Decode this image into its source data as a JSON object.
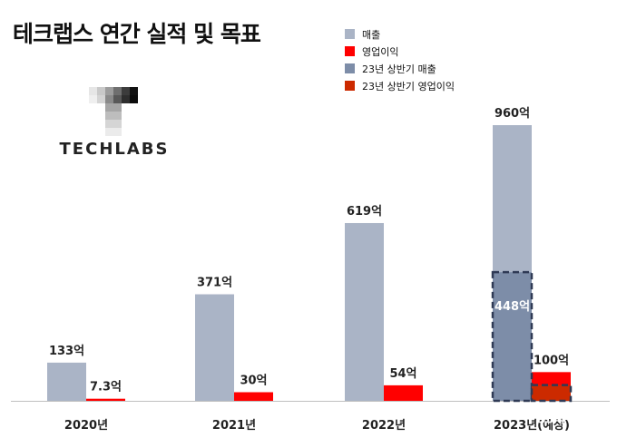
{
  "title": "테크랩스 연간 실적 및 목표",
  "logo": {
    "text": "TECHLABS"
  },
  "colors": {
    "revenue": "#aab4c6",
    "profit": "#ff0000",
    "h1_revenue": "#7d8da8",
    "h1_profit": "#cc2a00",
    "axis": "#bfbfbf",
    "label": "#222222"
  },
  "legend": [
    {
      "label": "매출",
      "color": "#aab4c6"
    },
    {
      "label": "영업이익",
      "color": "#ff0000"
    },
    {
      "label": "23년 상반기 매출",
      "color": "#7d8da8"
    },
    {
      "label": "23년 상반기 영업이익",
      "color": "#cc2a00"
    }
  ],
  "chart_data": {
    "type": "bar",
    "categories": [
      "2020년",
      "2021년",
      "2022년",
      "2023년(예상)"
    ],
    "series": [
      {
        "name": "매출",
        "values": [
          133,
          371,
          619,
          960
        ],
        "labels": [
          "133억",
          "371억",
          "619억",
          "960억"
        ]
      },
      {
        "name": "영업이익",
        "values": [
          7.3,
          30,
          54,
          100
        ],
        "labels": [
          "7.3억",
          "30억",
          "54억",
          "100억"
        ]
      }
    ],
    "overlay": [
      {
        "name": "23년 상반기 매출",
        "category": "2023년(예상)",
        "value": 448,
        "label": "448억"
      },
      {
        "name": "23년 상반기 영업이익",
        "category": "2023년(예상)",
        "value": 55,
        "label": "55억"
      }
    ],
    "ylim": [
      0,
      960
    ],
    "legend_position": "top-right",
    "grid": false
  }
}
